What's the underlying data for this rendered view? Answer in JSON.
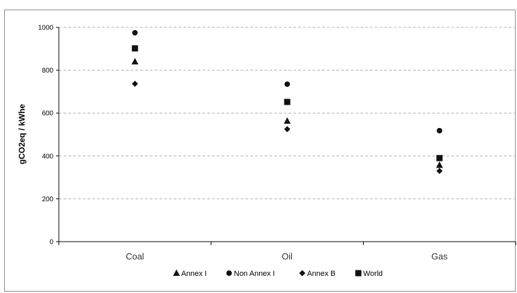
{
  "chart_data": {
    "type": "scatter",
    "title": "",
    "xlabel": "",
    "ylabel": "gCO2eq / kWhe",
    "categories": [
      "Coal",
      "Oil",
      "Gas"
    ],
    "ylim": [
      0,
      1000
    ],
    "yticks": [
      0,
      200,
      400,
      600,
      800,
      1000
    ],
    "grid": "horizontal-dashed",
    "legend": "bottom",
    "series": [
      {
        "name": "Annex I",
        "marker": "triangle",
        "values": [
          840,
          563,
          357
        ]
      },
      {
        "name": "Non Annex I",
        "marker": "circle",
        "values": [
          975,
          735,
          518
        ]
      },
      {
        "name": "Annex B",
        "marker": "diamond",
        "values": [
          737,
          525,
          330
        ]
      },
      {
        "name": "World",
        "marker": "square",
        "values": [
          902,
          652,
          390
        ]
      }
    ],
    "marker_color": "#111111"
  }
}
